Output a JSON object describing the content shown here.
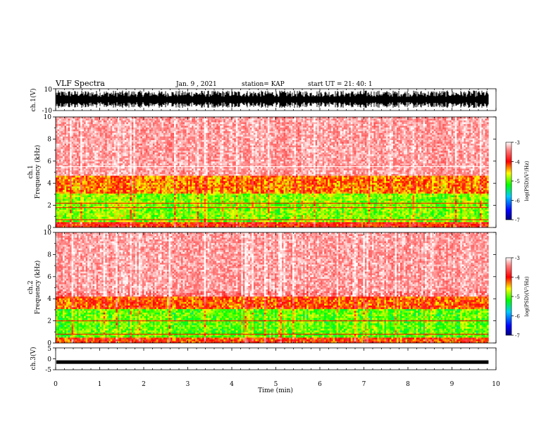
{
  "header": {
    "title": "VLF Spectra",
    "date": "Jan. 9 , 2021",
    "station": "station= KAP",
    "start": "start UT = 21: 40: 1"
  },
  "chart_data": [
    {
      "type": "line",
      "name": "ch1-waveform",
      "ylabel": "ch.1(V)",
      "ylim": [
        -10,
        10
      ],
      "yticks": [
        "10",
        "-10"
      ],
      "xlim": [
        0,
        10
      ],
      "x_end": 9.83
    },
    {
      "type": "heatmap",
      "name": "ch1-spectrogram",
      "ylabel": "ch.1\nFrequency (kHz)",
      "ylabel_lines": [
        "ch.1",
        "Frequency (kHz)"
      ],
      "ylim": [
        0,
        10
      ],
      "yticks": [
        "0",
        "2",
        "4",
        "6",
        "8",
        "10"
      ],
      "xlim": [
        0,
        10
      ],
      "x_end": 9.83,
      "colorbar": {
        "label": "log(PSD)(V²/Hz)",
        "ticks": [
          "-3",
          "-4",
          "-5",
          "-6",
          "-7"
        ],
        "range": [
          -7,
          -3
        ]
      },
      "bands": [
        {
          "from": 0.0,
          "to": 0.5,
          "level": -4.0
        },
        {
          "from": 0.5,
          "to": 3.0,
          "level": -4.9
        },
        {
          "from": 3.0,
          "to": 4.6,
          "level": -4.3
        },
        {
          "from": 4.6,
          "to": 10.0,
          "level": -3.4
        }
      ],
      "lines_khz": [
        5.5,
        2.2,
        1.8,
        0.7
      ]
    },
    {
      "type": "heatmap",
      "name": "ch2-spectrogram",
      "ylabel": "ch.2\nFrequency (kHz)",
      "ylabel_lines": [
        "ch.2",
        "Frequency (kHz)"
      ],
      "ylim": [
        0,
        10
      ],
      "yticks": [
        "0",
        "2",
        "4",
        "6",
        "8",
        "10"
      ],
      "xlim": [
        0,
        10
      ],
      "x_end": 9.83,
      "colorbar": {
        "label": "log(PSD)(V²/Hz)",
        "ticks": [
          "-3",
          "-4",
          "-5",
          "-6",
          "-7"
        ],
        "range": [
          -7,
          -3
        ]
      },
      "bands": [
        {
          "from": 0.0,
          "to": 0.5,
          "level": -4.1
        },
        {
          "from": 0.5,
          "to": 3.0,
          "level": -5.0
        },
        {
          "from": 3.0,
          "to": 4.2,
          "level": -4.2
        },
        {
          "from": 4.2,
          "to": 10.0,
          "level": -3.4
        }
      ],
      "lines_khz": [
        2.0,
        0.8
      ]
    },
    {
      "type": "line",
      "name": "ch3-waveform",
      "ylabel": "ch.3(V)",
      "ylim": [
        -5,
        5
      ],
      "yticks": [
        "5",
        "0",
        "-5"
      ],
      "xlim": [
        0,
        10
      ],
      "x_end": 9.83,
      "level": -1.5
    }
  ],
  "xaxis": {
    "label": "Time (min)",
    "ticks": [
      "0",
      "1",
      "2",
      "3",
      "4",
      "5",
      "6",
      "7",
      "8",
      "9",
      "10"
    ]
  },
  "colors": {
    "trace": "#000000",
    "white": "#ffffff",
    "red": "#ff0000",
    "yellow": "#ffff00",
    "green": "#00ff00",
    "blue": "#0000ff",
    "navy": "#000080"
  }
}
